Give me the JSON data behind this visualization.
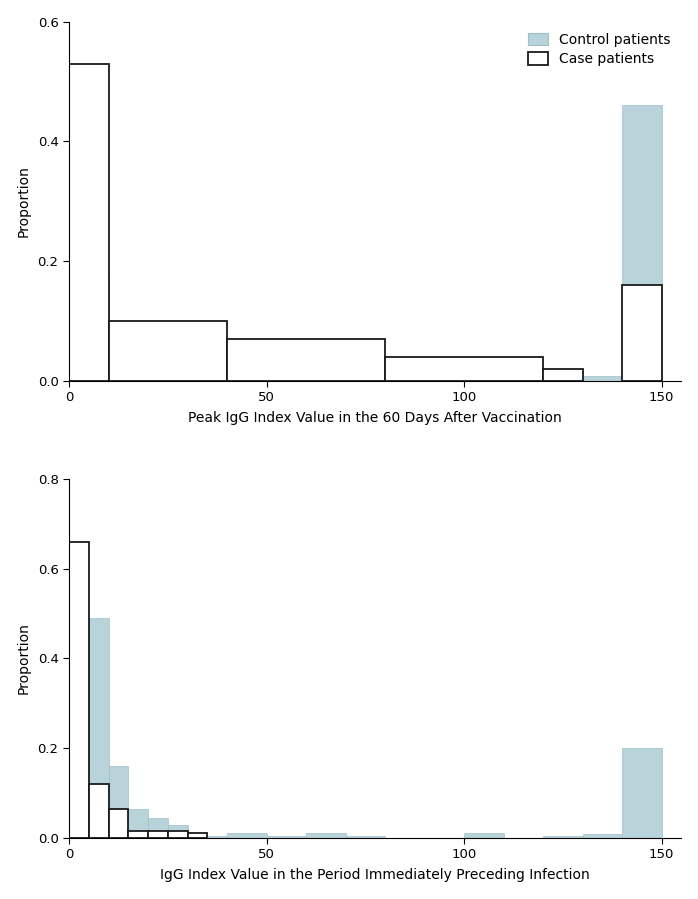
{
  "top": {
    "title": "Peak IgG Index Value in the 60 Days After Vaccination",
    "ylim": [
      0,
      0.6
    ],
    "yticks": [
      0,
      0.2,
      0.4,
      0.6
    ],
    "xlim": [
      0,
      155
    ],
    "xticks": [
      0,
      50,
      100,
      150
    ],
    "control_bins": [
      0,
      10,
      20,
      30,
      40,
      50,
      60,
      70,
      80,
      90,
      100,
      110,
      120,
      130,
      140,
      150
    ],
    "control_heights": [
      0.18,
      0.065,
      0.07,
      0.055,
      0.055,
      0.035,
      0.055,
      0.035,
      0.04,
      0.015,
      0.025,
      0.01,
      0.018,
      0.008,
      0.46
    ],
    "case_bins": [
      0,
      10,
      40,
      80,
      120,
      130,
      140,
      150
    ],
    "case_heights": [
      0.53,
      0.1,
      0.07,
      0.04,
      0.02,
      0.0,
      0.16
    ]
  },
  "bottom": {
    "title": "IgG Index Value in the Period Immediately Preceding Infection",
    "ylim": [
      0,
      0.8
    ],
    "yticks": [
      0,
      0.2,
      0.4,
      0.6,
      0.8
    ],
    "xlim": [
      0,
      155
    ],
    "xticks": [
      0,
      50,
      100,
      150
    ],
    "control_bins": [
      0,
      5,
      10,
      15,
      20,
      25,
      30,
      35,
      40,
      50,
      60,
      70,
      80,
      90,
      100,
      110,
      120,
      130,
      140,
      150
    ],
    "control_heights": [
      0.49,
      0.49,
      0.16,
      0.065,
      0.045,
      0.03,
      0.01,
      0.005,
      0.012,
      0.005,
      0.012,
      0.005,
      0.0,
      0.0,
      0.012,
      0.0,
      0.005,
      0.008,
      0.2
    ],
    "case_bins": [
      0,
      5,
      10,
      15,
      20,
      25,
      30,
      35,
      40
    ],
    "case_heights": [
      0.66,
      0.12,
      0.065,
      0.015,
      0.015,
      0.015,
      0.01,
      0.0
    ]
  },
  "control_color": "#b8d4da",
  "control_edge_color": "#9fbfc7",
  "case_color": "white",
  "case_edge_color": "#1a1a1a",
  "ylabel": "Proportion",
  "legend_control": "Control patients",
  "legend_case": "Case patients",
  "background_color": "white",
  "case_linewidth": 1.3,
  "control_linewidth": 0.5
}
